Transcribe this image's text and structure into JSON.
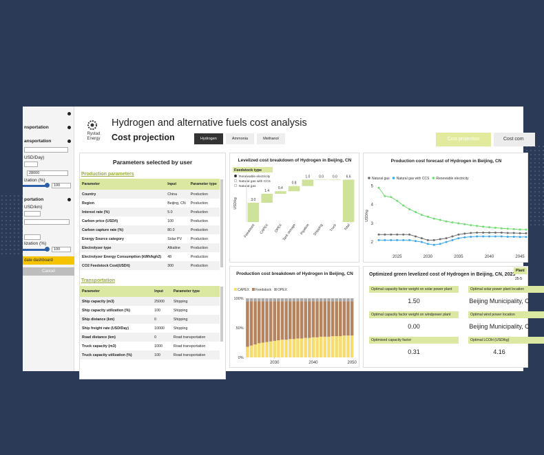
{
  "sidebar": {
    "s1": "nsportation",
    "s2": "ansportation",
    "s3": "USD/Day)",
    "s4": "28000",
    "s5": "ization (%)",
    "s6": "100",
    "s7": "portation",
    "s8": "USD/km)",
    "s9": "lization (%)",
    "s10": "100",
    "update": "date dashboard",
    "cancel": "Cancel"
  },
  "header": {
    "logo": "Rystad Energy",
    "title": "Hydrogen and alternative fuels cost analysis",
    "subtitle": "Cost projection",
    "tabs": [
      "Hydrogen",
      "Ammonia",
      "Methanol"
    ],
    "buttons": [
      "Cost projection",
      "Cost com"
    ]
  },
  "parameters": {
    "title": "Parameters selected by user",
    "production": {
      "heading": "Production parameters",
      "columns": [
        "Parameter",
        "Input",
        "Parameter type"
      ],
      "rows": [
        [
          "Country",
          "China",
          "Production"
        ],
        [
          "Region",
          "Beijing, CN",
          "Production"
        ],
        [
          "Interest rate (%)",
          "5.0",
          "Production"
        ],
        [
          "Carbon price (USD/t)",
          "100",
          "Production"
        ],
        [
          "Carbon capture rate (%)",
          "80.0",
          "Production"
        ],
        [
          "Energy Source category",
          "Solar PV",
          "Production"
        ],
        [
          "Electrolyzer type",
          "Alkaline",
          "Production"
        ],
        [
          "Electrolyzer Energy Consumption (kWh/kgh2)",
          "48",
          "Production"
        ],
        [
          "CO2 Feedstock Cost(USD/t)",
          "300",
          "Production"
        ]
      ]
    },
    "transportation": {
      "heading": "Transportation",
      "columns": [
        "Parameter",
        "Input",
        "Parameter type"
      ],
      "rows": [
        [
          "Ship capacity (m3)",
          "25000",
          "Shipping"
        ],
        [
          "Ship capacity utilization (%)",
          "100",
          "Shipping"
        ],
        [
          "Ship distance (km)",
          "0",
          "Shipping"
        ],
        [
          "Ship freight rate (USD/Day)",
          "10000",
          "Shipping"
        ],
        [
          "Road distance (km)",
          "0",
          "Road transportation"
        ],
        [
          "Truck capacity (m3)",
          "1000",
          "Road transportation"
        ],
        [
          "Truck capacity utilization (%)",
          "100",
          "Road transportation"
        ]
      ]
    }
  },
  "chart_data": [
    {
      "type": "waterfall",
      "title": "Levelized cost breakdown of Hydrogen in Beijing, CN",
      "legend_title": "Feedstock type",
      "options": [
        "Renewable electricity",
        "Natural gas with CCS",
        "Natural gas"
      ],
      "y_label": "USD/kg",
      "categories": [
        "Feedstock",
        "CAPEX",
        "OPEX",
        "Tank storage",
        "Pipeline",
        "Shipping",
        "Truck",
        "Total"
      ],
      "values": [
        3.0,
        1.4,
        0.4,
        0.8,
        1.0,
        0.0,
        0.0,
        6.6
      ],
      "value_labels": [
        "3.0",
        "1.4",
        "0.4",
        "0.8",
        "1.0",
        "0.0",
        "0.0",
        "6.6"
      ],
      "color": "#cfe29a",
      "ylim": [
        0,
        7.5
      ]
    },
    {
      "type": "line",
      "title": "Production cost forecast of Hydrogen in Beijing, CN",
      "y_label": "USD/kg",
      "x": [
        2022,
        2023,
        2024,
        2025,
        2026,
        2027,
        2028,
        2029,
        2030,
        2031,
        2032,
        2033,
        2034,
        2035,
        2036,
        2037,
        2038,
        2039,
        2040,
        2041,
        2042,
        2043,
        2044,
        2045,
        2046
      ],
      "series": [
        {
          "name": "Natural gas",
          "color": "#6b6b6b",
          "values": [
            2.4,
            2.4,
            2.4,
            2.4,
            2.4,
            2.4,
            2.3,
            2.2,
            2.1,
            2.1,
            2.15,
            2.2,
            2.3,
            2.4,
            2.45,
            2.48,
            2.5,
            2.5,
            2.5,
            2.5,
            2.5,
            2.48,
            2.48,
            2.47,
            2.47
          ]
        },
        {
          "name": "Natural gas with CCS",
          "color": "#3aa6ee",
          "values": [
            2.1,
            2.1,
            2.1,
            2.1,
            2.1,
            2.1,
            2.05,
            2.0,
            1.9,
            1.85,
            1.9,
            2.0,
            2.1,
            2.2,
            2.25,
            2.28,
            2.3,
            2.3,
            2.3,
            2.3,
            2.3,
            2.28,
            2.28,
            2.27,
            2.27
          ]
        },
        {
          "name": "Renewable electricity",
          "color": "#6fdc6f",
          "values": [
            4.9,
            4.45,
            4.4,
            4.2,
            3.95,
            3.75,
            3.6,
            3.45,
            3.35,
            3.25,
            3.18,
            3.1,
            3.05,
            3.0,
            2.95,
            2.9,
            2.86,
            2.82,
            2.79,
            2.76,
            2.73,
            2.71,
            2.69,
            2.67,
            2.66
          ]
        }
      ],
      "xlim": [
        2022,
        2046
      ],
      "xticks": [
        2025,
        2030,
        2035,
        2040,
        2045
      ],
      "ylim": [
        1.6,
        5.2
      ],
      "yticks": [
        2,
        3,
        4,
        5
      ]
    },
    {
      "type": "stacked_bar",
      "title": "Production cost breakdown of Hydrogen in Beijing, CN",
      "categories": [
        2023,
        2024,
        2025,
        2026,
        2027,
        2028,
        2029,
        2030,
        2031,
        2032,
        2033,
        2034,
        2035,
        2036,
        2037,
        2038,
        2039,
        2040,
        2041,
        2042,
        2043,
        2044,
        2045,
        2046,
        2047,
        2048,
        2049,
        2050
      ],
      "series": [
        {
          "name": "CAPEX",
          "color": "#f7dc6f",
          "values": [
            18,
            20,
            22,
            24,
            25,
            26,
            27,
            28,
            29,
            30,
            30,
            31,
            31,
            32,
            32,
            33,
            33,
            34,
            34,
            35,
            35,
            35,
            36,
            36,
            36,
            37,
            37,
            37
          ]
        },
        {
          "name": "Feedstock",
          "color": "#b5835e",
          "values": [
            77,
            75,
            73,
            71,
            70,
            69,
            68,
            67,
            66,
            65,
            65,
            64,
            64,
            63,
            63,
            62,
            62,
            61,
            61,
            60,
            60,
            60,
            59,
            59,
            59,
            58,
            58,
            58
          ]
        },
        {
          "name": "OPEX",
          "color": "#a9a9a9",
          "values": [
            5,
            5,
            5,
            5,
            5,
            5,
            5,
            5,
            5,
            5,
            5,
            5,
            5,
            5,
            5,
            5,
            5,
            5,
            5,
            5,
            5,
            5,
            5,
            5,
            5,
            5,
            5,
            5
          ]
        }
      ],
      "xticks": [
        2030,
        2040,
        2050
      ],
      "ylim": [
        0,
        100
      ],
      "yticks": [
        {
          "value": 0,
          "label": "0%"
        },
        {
          "value": 50,
          "label": "50%"
        },
        {
          "value": 100,
          "label": "100%"
        }
      ]
    }
  ],
  "optimized": {
    "title": "Optimized green levelized cost of Hydrogen in Beijing, CN, 2023",
    "plant_header": "Plant",
    "plant_sub": "25-5",
    "cards": [
      {
        "label": "Optimal capacity factor weight on solar power plant",
        "value": "1.50"
      },
      {
        "label": "Optimal capacity factor weight on windpower plant",
        "value": "0.00"
      },
      {
        "label": "Optimised capacity factor",
        "value": "0.31"
      },
      {
        "label": "Optimal solar power plant location",
        "value": "Beijing Municipality, C"
      },
      {
        "label": "Optimal wind power location",
        "value": "Beijing Municipality, C"
      },
      {
        "label": "Optimal LCOH (USD/kg)",
        "value": "4.16"
      }
    ]
  }
}
